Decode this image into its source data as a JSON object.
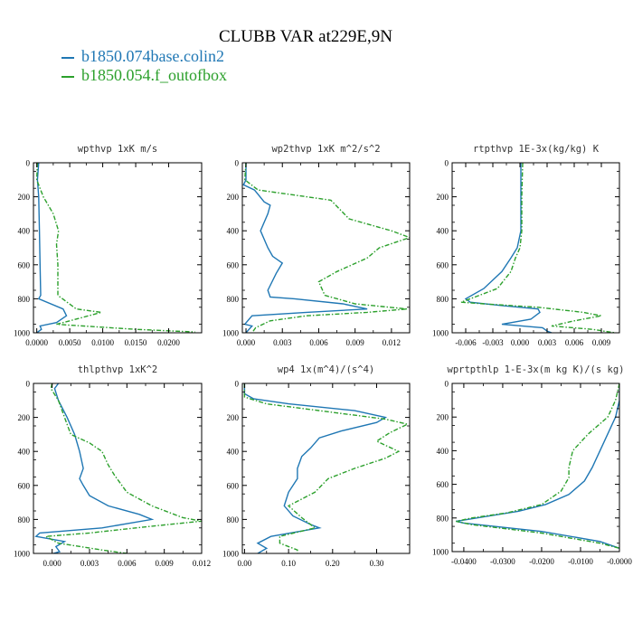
{
  "title": "CLUBB VAR at229E,9N",
  "legend": [
    {
      "label": "b1850.074base.colin2",
      "color": "#1f77b4"
    },
    {
      "label": "b1850.054.f_outofbox",
      "color": "#2ca02c"
    }
  ],
  "chart_data": [
    {
      "type": "line",
      "title": "wpthvp  1xK m/s",
      "xlim": [
        -0.0005,
        0.025
      ],
      "ylim": [
        1000,
        0
      ],
      "xticks": [
        "0.0000",
        "0.0050",
        "0.0100",
        "0.0150",
        "0.0200"
      ],
      "xtick_values": [
        0,
        0.005,
        0.01,
        0.015,
        0.02
      ],
      "yticks": [
        0,
        200,
        400,
        600,
        800,
        1000
      ],
      "series": [
        {
          "name": "b1850.074base.colin2",
          "color": "#1f77b4",
          "dashed": false,
          "points": [
            [
              0.0003,
              0
            ],
            [
              0.0001,
              100
            ],
            [
              0.0003,
              200
            ],
            [
              0.0004,
              400
            ],
            [
              0.0005,
              600
            ],
            [
              0.0006,
              780
            ],
            [
              0.0003,
              800
            ],
            [
              0.004,
              860
            ],
            [
              0.0045,
              900
            ],
            [
              0.003,
              940
            ],
            [
              0.0005,
              960
            ],
            [
              0.0007,
              980
            ],
            [
              0.0,
              1000
            ]
          ]
        },
        {
          "name": "b1850.054.f_outofbox",
          "color": "#2ca02c",
          "dashed": true,
          "points": [
            [
              0.0001,
              0
            ],
            [
              0.0,
              100
            ],
            [
              0.001,
              200
            ],
            [
              0.0025,
              300
            ],
            [
              0.0033,
              400
            ],
            [
              0.003,
              480
            ],
            [
              0.0032,
              600
            ],
            [
              0.0032,
              780
            ],
            [
              0.006,
              860
            ],
            [
              0.0098,
              880
            ],
            [
              0.005,
              930
            ],
            [
              0.003,
              950
            ],
            [
              0.015,
              980
            ],
            [
              0.024,
              995
            ]
          ]
        }
      ]
    },
    {
      "type": "line",
      "title": "wp2thvp  1xK m^2/s^2",
      "xlim": [
        -0.0003,
        0.0135
      ],
      "ylim": [
        1000,
        0
      ],
      "xticks": [
        "0.000",
        "0.003",
        "0.006",
        "0.009",
        "0.012"
      ],
      "xtick_values": [
        0,
        0.003,
        0.006,
        0.009,
        0.012
      ],
      "yticks": [
        0,
        200,
        400,
        600,
        800,
        1000
      ],
      "series": [
        {
          "name": "b1850.074base.colin2",
          "color": "#1f77b4",
          "dashed": false,
          "points": [
            [
              0.0,
              0
            ],
            [
              0.0,
              100
            ],
            [
              -0.0002,
              130
            ],
            [
              0.0007,
              160
            ],
            [
              0.0015,
              230
            ],
            [
              0.002,
              250
            ],
            [
              0.0018,
              300
            ],
            [
              0.0012,
              400
            ],
            [
              0.0018,
              500
            ],
            [
              0.0022,
              550
            ],
            [
              0.003,
              590
            ],
            [
              0.0025,
              650
            ],
            [
              0.0018,
              750
            ],
            [
              0.002,
              790
            ],
            [
              0.004,
              800
            ],
            [
              0.008,
              830
            ],
            [
              0.01,
              860
            ],
            [
              0.005,
              880
            ],
            [
              0.0005,
              900
            ],
            [
              -0.0001,
              950
            ],
            [
              0.0005,
              960
            ],
            [
              0.0,
              1000
            ]
          ]
        },
        {
          "name": "b1850.054.f_outofbox",
          "color": "#2ca02c",
          "dashed": true,
          "points": [
            [
              0.0,
              0
            ],
            [
              -0.0001,
              100
            ],
            [
              0.001,
              160
            ],
            [
              0.004,
              190
            ],
            [
              0.007,
              220
            ],
            [
              0.0085,
              330
            ],
            [
              0.01,
              360
            ],
            [
              0.012,
              400
            ],
            [
              0.0135,
              440
            ],
            [
              0.011,
              500
            ],
            [
              0.01,
              560
            ],
            [
              0.0075,
              640
            ],
            [
              0.006,
              700
            ],
            [
              0.0065,
              780
            ],
            [
              0.009,
              830
            ],
            [
              0.0133,
              860
            ],
            [
              0.01,
              880
            ],
            [
              0.005,
              900
            ],
            [
              0.002,
              930
            ],
            [
              0.0008,
              970
            ],
            [
              0.0005,
              1000
            ]
          ]
        }
      ]
    },
    {
      "type": "line",
      "title": "rtpthvp  1E-3x(kg/kg) K",
      "xlim": [
        -0.0075,
        0.011
      ],
      "ylim": [
        1000,
        0
      ],
      "xticks": [
        "-0.006",
        "-0.003",
        "0.000",
        "0.003",
        "0.006",
        "0.009"
      ],
      "xtick_values": [
        -0.006,
        -0.003,
        0,
        0.003,
        0.006,
        0.009
      ],
      "yticks": [
        0,
        200,
        400,
        600,
        800,
        1000
      ],
      "series": [
        {
          "name": "b1850.074base.colin2",
          "color": "#1f77b4",
          "dashed": false,
          "points": [
            [
              0.0001,
              0
            ],
            [
              0.0001,
              200
            ],
            [
              0.0001,
              400
            ],
            [
              -0.0003,
              500
            ],
            [
              -0.001,
              560
            ],
            [
              -0.002,
              640
            ],
            [
              -0.004,
              740
            ],
            [
              -0.006,
              800
            ],
            [
              -0.0055,
              820
            ],
            [
              -0.002,
              840
            ],
            [
              0.002,
              860
            ],
            [
              0.0022,
              880
            ],
            [
              0.0012,
              920
            ],
            [
              -0.002,
              950
            ],
            [
              0.0025,
              970
            ],
            [
              0.003,
              990
            ],
            [
              0.0035,
              1000
            ]
          ]
        },
        {
          "name": "b1850.054.f_outofbox",
          "color": "#2ca02c",
          "dashed": true,
          "points": [
            [
              0.0003,
              0
            ],
            [
              0.0002,
              200
            ],
            [
              0.0002,
              400
            ],
            [
              0.0,
              500
            ],
            [
              -0.0005,
              560
            ],
            [
              -0.001,
              640
            ],
            [
              -0.0025,
              740
            ],
            [
              -0.005,
              790
            ],
            [
              -0.0065,
              820
            ],
            [
              -0.004,
              830
            ],
            [
              0.002,
              850
            ],
            [
              0.007,
              880
            ],
            [
              0.009,
              900
            ],
            [
              0.006,
              930
            ],
            [
              0.0035,
              960
            ],
            [
              0.008,
              980
            ],
            [
              0.0105,
              1000
            ]
          ]
        }
      ]
    },
    {
      "type": "line",
      "title": "thlpthvp  1xK^2",
      "xlim": [
        -0.0015,
        0.012
      ],
      "ylim": [
        1000,
        0
      ],
      "xticks": [
        "0.000",
        "0.003",
        "0.006",
        "0.009",
        "0.012"
      ],
      "xtick_values": [
        0,
        0.003,
        0.006,
        0.009,
        0.012
      ],
      "yticks": [
        0,
        200,
        400,
        600,
        800,
        1000
      ],
      "series": [
        {
          "name": "b1850.074base.colin2",
          "color": "#1f77b4",
          "dashed": false,
          "points": [
            [
              0.0005,
              0
            ],
            [
              0.0002,
              30
            ],
            [
              0.0005,
              100
            ],
            [
              0.0012,
              200
            ],
            [
              0.0018,
              300
            ],
            [
              0.0022,
              400
            ],
            [
              0.0025,
              500
            ],
            [
              0.0022,
              560
            ],
            [
              0.0025,
              600
            ],
            [
              0.003,
              660
            ],
            [
              0.0045,
              720
            ],
            [
              0.007,
              770
            ],
            [
              0.008,
              800
            ],
            [
              0.004,
              850
            ],
            [
              -0.001,
              880
            ],
            [
              -0.0013,
              900
            ],
            [
              0.001,
              930
            ],
            [
              0.0003,
              960
            ],
            [
              0.0006,
              990
            ],
            [
              0.0001,
              1000
            ]
          ]
        },
        {
          "name": "b1850.054.f_outofbox",
          "color": "#2ca02c",
          "dashed": true,
          "points": [
            [
              0.0,
              0
            ],
            [
              -0.0001,
              30
            ],
            [
              0.0005,
              100
            ],
            [
              0.001,
              200
            ],
            [
              0.0015,
              300
            ],
            [
              0.003,
              350
            ],
            [
              0.004,
              400
            ],
            [
              0.0045,
              480
            ],
            [
              0.005,
              540
            ],
            [
              0.006,
              640
            ],
            [
              0.008,
              720
            ],
            [
              0.0105,
              790
            ],
            [
              0.012,
              810
            ],
            [
              0.008,
              840
            ],
            [
              0.003,
              880
            ],
            [
              -0.0005,
              900
            ],
            [
              0.0005,
              940
            ],
            [
              0.004,
              980
            ],
            [
              0.006,
              1000
            ]
          ]
        }
      ]
    },
    {
      "type": "line",
      "title": "wp4  1x(m^4)/(s^4)",
      "xlim": [
        -0.005,
        0.375
      ],
      "ylim": [
        1000,
        0
      ],
      "xticks": [
        "0.00",
        "0.10",
        "0.20",
        "0.30"
      ],
      "xtick_values": [
        0,
        0.1,
        0.2,
        0.3
      ],
      "yticks": [
        0,
        200,
        400,
        600,
        800,
        1000
      ],
      "series": [
        {
          "name": "b1850.074base.colin2",
          "color": "#1f77b4",
          "dashed": false,
          "points": [
            [
              0.0,
              0
            ],
            [
              0.0,
              60
            ],
            [
              0.02,
              90
            ],
            [
              0.1,
              120
            ],
            [
              0.25,
              160
            ],
            [
              0.32,
              200
            ],
            [
              0.3,
              230
            ],
            [
              0.22,
              280
            ],
            [
              0.17,
              320
            ],
            [
              0.15,
              380
            ],
            [
              0.13,
              430
            ],
            [
              0.12,
              500
            ],
            [
              0.12,
              560
            ],
            [
              0.1,
              640
            ],
            [
              0.09,
              720
            ],
            [
              0.11,
              780
            ],
            [
              0.15,
              830
            ],
            [
              0.17,
              850
            ],
            [
              0.06,
              900
            ],
            [
              0.03,
              940
            ],
            [
              0.05,
              970
            ],
            [
              0.03,
              1000
            ]
          ]
        },
        {
          "name": "b1850.054.f_outofbox",
          "color": "#2ca02c",
          "dashed": true,
          "points": [
            [
              0.0,
              0
            ],
            [
              0.0,
              80
            ],
            [
              0.05,
              120
            ],
            [
              0.2,
              170
            ],
            [
              0.32,
              210
            ],
            [
              0.37,
              240
            ],
            [
              0.33,
              290
            ],
            [
              0.3,
              340
            ],
            [
              0.35,
              400
            ],
            [
              0.32,
              440
            ],
            [
              0.25,
              500
            ],
            [
              0.19,
              560
            ],
            [
              0.16,
              640
            ],
            [
              0.1,
              720
            ],
            [
              0.13,
              790
            ],
            [
              0.16,
              850
            ],
            [
              0.08,
              900
            ],
            [
              0.08,
              940
            ],
            [
              0.12,
              980
            ],
            [
              0.12,
              1000
            ]
          ]
        }
      ]
    },
    {
      "type": "line",
      "title": "wprtpthlp  1-E-3x(m kg K)/(s kg)",
      "xlim": [
        -0.043,
        0.0
      ],
      "ylim": [
        1000,
        0
      ],
      "xticks": [
        "-0.0400",
        "-0.0300",
        "-0.0200",
        "-0.0100",
        "-0.0000"
      ],
      "xtick_values": [
        -0.04,
        -0.03,
        -0.02,
        -0.01,
        0
      ],
      "yticks": [
        0,
        200,
        400,
        600,
        800,
        1000
      ],
      "series": [
        {
          "name": "b1850.074base.colin2",
          "color": "#1f77b4",
          "dashed": false,
          "points": [
            [
              0.0,
              0
            ],
            [
              0.0,
              100
            ],
            [
              -0.001,
              200
            ],
            [
              -0.003,
              300
            ],
            [
              -0.005,
              400
            ],
            [
              -0.007,
              500
            ],
            [
              -0.009,
              580
            ],
            [
              -0.013,
              660
            ],
            [
              -0.019,
              720
            ],
            [
              -0.026,
              760
            ],
            [
              -0.034,
              790
            ],
            [
              -0.042,
              820
            ],
            [
              -0.04,
              830
            ],
            [
              -0.02,
              880
            ],
            [
              -0.005,
              940
            ],
            [
              0.0,
              980
            ]
          ]
        },
        {
          "name": "b1850.054.f_outofbox",
          "color": "#2ca02c",
          "dashed": true,
          "points": [
            [
              0.0,
              0
            ],
            [
              -0.001,
              100
            ],
            [
              -0.003,
              200
            ],
            [
              -0.008,
              300
            ],
            [
              -0.012,
              400
            ],
            [
              -0.013,
              500
            ],
            [
              -0.013,
              560
            ],
            [
              -0.015,
              640
            ],
            [
              -0.02,
              720
            ],
            [
              -0.029,
              770
            ],
            [
              -0.038,
              800
            ],
            [
              -0.042,
              820
            ],
            [
              -0.038,
              840
            ],
            [
              -0.02,
              890
            ],
            [
              -0.005,
              950
            ],
            [
              0.0,
              980
            ]
          ]
        }
      ]
    }
  ]
}
